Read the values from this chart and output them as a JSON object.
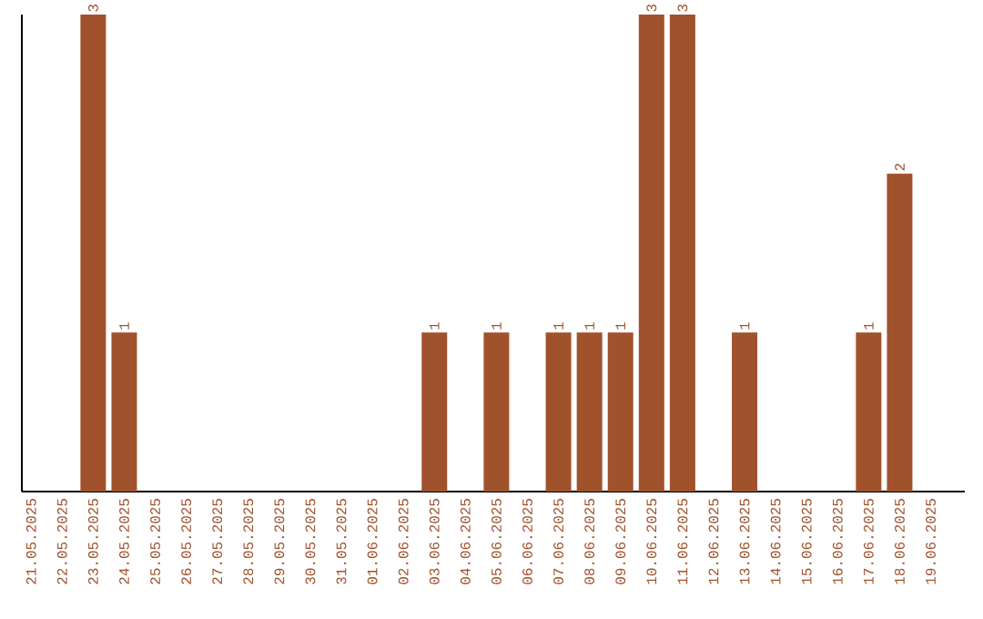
{
  "chart_data": {
    "type": "bar",
    "categories": [
      "21.05.2025",
      "22.05.2025",
      "23.05.2025",
      "24.05.2025",
      "25.05.2025",
      "26.05.2025",
      "27.05.2025",
      "28.05.2025",
      "29.05.2025",
      "30.05.2025",
      "31.05.2025",
      "01.06.2025",
      "02.06.2025",
      "03.06.2025",
      "04.06.2025",
      "05.06.2025",
      "06.06.2025",
      "07.06.2025",
      "08.06.2025",
      "09.06.2025",
      "10.06.2025",
      "11.06.2025",
      "12.06.2025",
      "13.06.2025",
      "14.06.2025",
      "15.06.2025",
      "16.06.2025",
      "17.06.2025",
      "18.06.2025",
      "19.06.2025"
    ],
    "values": [
      0,
      0,
      3,
      1,
      0,
      0,
      0,
      0,
      0,
      0,
      0,
      0,
      0,
      1,
      0,
      1,
      0,
      1,
      1,
      1,
      3,
      3,
      0,
      1,
      0,
      0,
      0,
      1,
      2,
      0
    ],
    "value_labels": [
      null,
      null,
      "3",
      "1",
      null,
      null,
      null,
      null,
      null,
      null,
      null,
      null,
      null,
      "1",
      null,
      "1",
      null,
      "1",
      "1",
      "1",
      "3",
      "3",
      null,
      "1",
      null,
      null,
      null,
      "1",
      "2",
      null
    ],
    "color": "#a0522d",
    "tick_labels": "x",
    "grid": false
  }
}
